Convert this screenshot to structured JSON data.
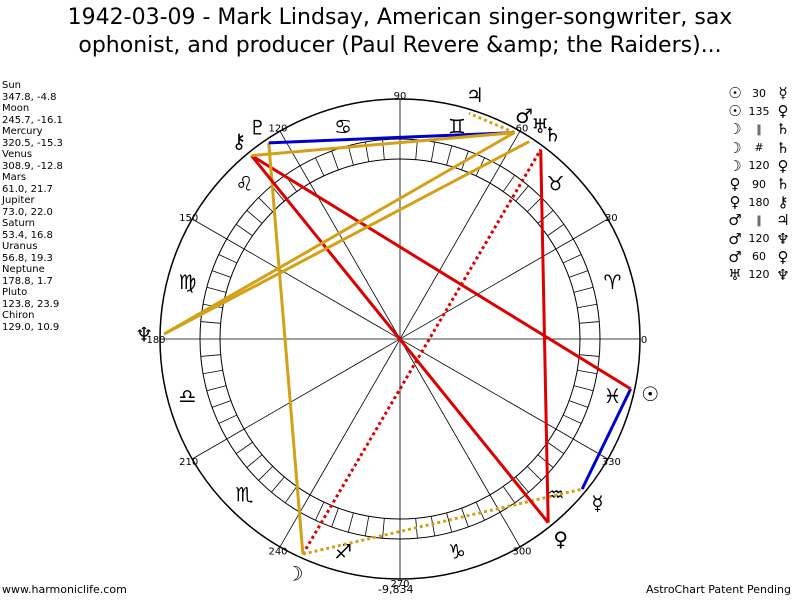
{
  "title": {
    "line1": "1942-03-09 - Mark Lindsay, American singer-songwriter, sax",
    "line2": "ophonist, and producer (Paul Revere &amp; the Raiders)..."
  },
  "planets": [
    {
      "name": "Sun",
      "coords": "347.8, -4.8",
      "lon": 347.8,
      "glyph": "☉"
    },
    {
      "name": "Moon",
      "coords": "245.7, -16.1",
      "lon": 245.7,
      "glyph": "☽"
    },
    {
      "name": "Mercury",
      "coords": "320.5, -15.3",
      "lon": 320.5,
      "glyph": "☿"
    },
    {
      "name": "Venus",
      "coords": "308.9, -12.8",
      "lon": 308.9,
      "glyph": "♀"
    },
    {
      "name": "Mars",
      "coords": "61.0, 21.7",
      "lon": 61.0,
      "glyph": "♂"
    },
    {
      "name": "Jupiter",
      "coords": "73.0, 22.0",
      "lon": 73.0,
      "glyph": "♃"
    },
    {
      "name": "Saturn",
      "coords": "53.4, 16.8",
      "lon": 53.4,
      "glyph": "♄"
    },
    {
      "name": "Uranus",
      "coords": "56.8, 19.3",
      "lon": 56.8,
      "glyph": "♅"
    },
    {
      "name": "Neptune",
      "coords": "178.8, 1.7",
      "lon": 178.8,
      "glyph": "♆"
    },
    {
      "name": "Pluto",
      "coords": "123.8, 23.9",
      "lon": 123.8,
      "glyph": "♇"
    },
    {
      "name": "Chiron",
      "coords": "129.0, 10.9",
      "lon": 129.0,
      "glyph": "⚷"
    }
  ],
  "aspects_list": [
    {
      "p1": "☉",
      "aspect": "30",
      "p2": "☿"
    },
    {
      "p1": "☉",
      "aspect": "135",
      "p2": "♀"
    },
    {
      "p1": "☽",
      "aspect": "∥",
      "p2": "♄"
    },
    {
      "p1": "☽",
      "aspect": "#",
      "p2": "♄"
    },
    {
      "p1": "☽",
      "aspect": "120",
      "p2": "♀"
    },
    {
      "p1": "♀",
      "aspect": "90",
      "p2": "♄"
    },
    {
      "p1": "♀",
      "aspect": "180",
      "p2": "⚷"
    },
    {
      "p1": "♂",
      "aspect": "∥",
      "p2": "♃"
    },
    {
      "p1": "♂",
      "aspect": "120",
      "p2": "♆"
    },
    {
      "p1": "♂",
      "aspect": "60",
      "p2": "♀"
    },
    {
      "p1": "♅",
      "aspect": "120",
      "p2": "♆"
    }
  ],
  "wheel": {
    "degree_labels": [
      {
        "deg": 0,
        "label": "0"
      },
      {
        "deg": 30,
        "label": "30"
      },
      {
        "deg": 60,
        "label": "60"
      },
      {
        "deg": 90,
        "label": "90"
      },
      {
        "deg": 120,
        "label": "120"
      },
      {
        "deg": 150,
        "label": "150"
      },
      {
        "deg": 180,
        "label": "180"
      },
      {
        "deg": 210,
        "label": "210"
      },
      {
        "deg": 240,
        "label": "240"
      },
      {
        "deg": 270,
        "label": "270"
      },
      {
        "deg": 300,
        "label": "300"
      },
      {
        "deg": 330,
        "label": "330"
      }
    ],
    "signs": [
      "♈",
      "♉",
      "♊",
      "♋",
      "♌",
      "♍",
      "♎",
      "♏",
      "♐",
      "♑",
      "♒",
      "♓"
    ],
    "aspect_lines": [
      {
        "from": 347.8,
        "to": 320.5,
        "color": "#0000cc",
        "style": "solid"
      },
      {
        "from": 347.8,
        "to": 129.0,
        "color": "#dd0000",
        "style": "solid"
      },
      {
        "from": 245.7,
        "to": 53.4,
        "color": "#dd0000",
        "style": "dotted"
      },
      {
        "from": 245.7,
        "to": 123.8,
        "color": "#d4a017",
        "style": "solid"
      },
      {
        "from": 245.7,
        "to": 320.5,
        "color": "#d4a017",
        "style": "dotted"
      },
      {
        "from": 308.9,
        "to": 129.0,
        "color": "#dd0000",
        "style": "solid"
      },
      {
        "from": 308.9,
        "to": 53.4,
        "color": "#dd0000",
        "style": "solid"
      },
      {
        "from": 61.0,
        "to": 73.0,
        "color": "#d4a017",
        "style": "dotted"
      },
      {
        "from": 61.0,
        "to": 178.8,
        "color": "#d4a017",
        "style": "solid"
      },
      {
        "from": 56.8,
        "to": 178.8,
        "color": "#d4a017",
        "style": "solid"
      },
      {
        "from": 61.0,
        "to": 123.8,
        "color": "#0000cc",
        "style": "solid"
      },
      {
        "from": 61.0,
        "to": 129.0,
        "color": "#d4a017",
        "style": "solid"
      }
    ],
    "colors": {
      "red": "#dd0000",
      "blue": "#0000cc",
      "gold": "#d4a017"
    }
  },
  "footer": {
    "left": "www.harmoniclife.com",
    "center": "-9,834",
    "right": "AstroChart Patent Pending"
  }
}
